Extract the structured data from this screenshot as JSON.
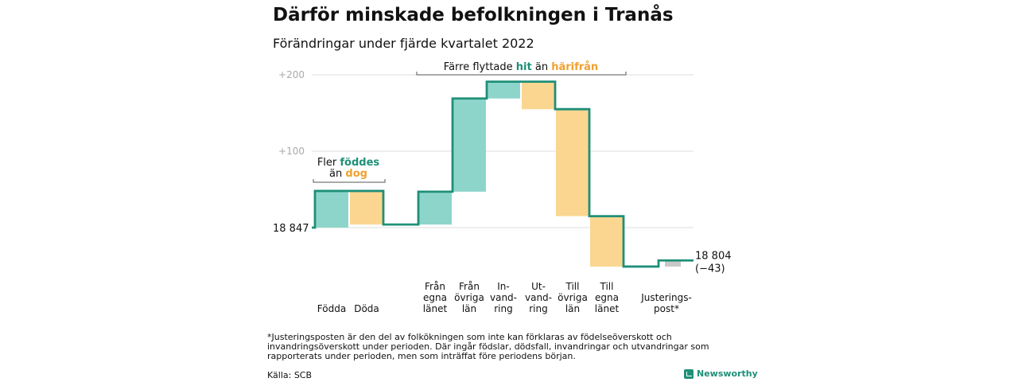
{
  "title": "Därför minskade befolkningen i Tranås",
  "subtitle": "Förändringar under fjärde kvartalet 2022",
  "chart_data": {
    "type": "waterfall",
    "start": 18847,
    "end": 18804,
    "start_label": "18 847",
    "end_label": [
      "18 804",
      "(−43)"
    ],
    "y_ticks": [
      {
        "value": 100,
        "label": "+100"
      },
      {
        "value": 200,
        "label": "+200"
      }
    ],
    "steps": [
      {
        "label": [
          "Födda"
        ],
        "change": 48,
        "kind": "plus"
      },
      {
        "label": [
          "Döda"
        ],
        "change": -44,
        "kind": "minus"
      },
      {
        "label": [
          "Från",
          "egna",
          "länet"
        ],
        "change": 43,
        "kind": "plus"
      },
      {
        "label": [
          "Från",
          "övriga",
          "län"
        ],
        "change": 122,
        "kind": "plus"
      },
      {
        "label": [
          "In-",
          "vand-",
          "ring"
        ],
        "change": 22,
        "kind": "plus"
      },
      {
        "label": [
          "Ut-",
          "vand-",
          "ring"
        ],
        "change": -36,
        "kind": "minus"
      },
      {
        "label": [
          "Till",
          "övriga",
          "län"
        ],
        "change": -140,
        "kind": "minus"
      },
      {
        "label": [
          "Till",
          "egna",
          "länet"
        ],
        "change": -66,
        "kind": "minus"
      },
      {
        "label": [
          "Justerings-",
          "post*"
        ],
        "change": 8,
        "kind": "adjust"
      }
    ],
    "annotations": [
      {
        "parts": [
          {
            "text": "Fler ",
            "tone": "plain"
          },
          {
            "text": "föddes",
            "tone": "plus"
          }
        ],
        "line2": [
          {
            "text": "än ",
            "tone": "plain"
          },
          {
            "text": "dog",
            "tone": "minus"
          }
        ]
      },
      {
        "parts": [
          {
            "text": "Färre flyttade ",
            "tone": "plain"
          },
          {
            "text": "hit",
            "tone": "plus"
          },
          {
            "text": " än ",
            "tone": "plain"
          },
          {
            "text": "härifrån",
            "tone": "minus"
          }
        ]
      }
    ],
    "colors": {
      "plus": "#8dd5cb",
      "minus": "#fad690",
      "adjust": "#c8c8c8",
      "line": "#1f8f78",
      "plus_text": "#1f8f78",
      "minus_text": "#f0a030",
      "grid": "#dddddd",
      "tick_text": "#aaaaaa"
    }
  },
  "footnote": "*Justeringsposten är den del av folkökningen som inte kan förklaras av födelseöverskott och invandringsöverskott under perioden. Där ingår födslar, dödsfall, invandringar och utvandringar som rapporterats under perioden, men som inträffat före periodens början.",
  "source": "Källa: SCB",
  "brand": "Newsworthy"
}
